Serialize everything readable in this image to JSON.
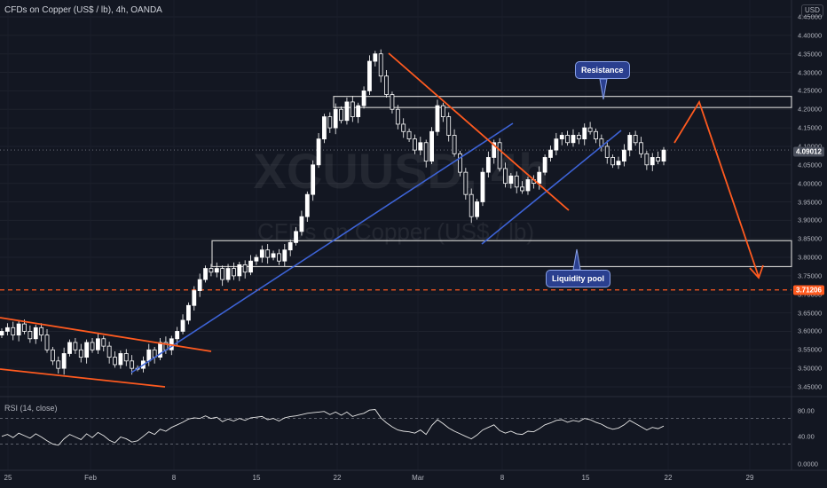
{
  "header": {
    "title": "CFDs on Copper (US$ / lb), 4h, OANDA",
    "currency": "USD"
  },
  "watermark": {
    "symbol": "XCUUSD, 4h",
    "description": "CFDs on Copper (US$ / lb)"
  },
  "rsi": {
    "label": "RSI (14, close)",
    "ticks": [
      "80.00",
      "40.00",
      "0.0000"
    ]
  },
  "annotations": {
    "resistance": "Resistance",
    "liquidity": "Liquidity pool"
  },
  "price_tags": {
    "current": "4.09012",
    "level": "3.71206"
  },
  "colors": {
    "background": "#131722",
    "bull": "#ffffff",
    "bear": "#ffffff",
    "trendline_blue": "#3d63d6",
    "trendline_orange": "#ff5a1f",
    "zone_border": "#c8c8c8",
    "callout_bg": "#2a3f8f",
    "level_line": "#ff5a1f"
  },
  "chart_data": {
    "type": "candlestick",
    "title": "CFDs on Copper (US$ / lb), 4h, OANDA",
    "y_axis": {
      "ticks": [
        "4.45000",
        "4.40000",
        "4.35000",
        "4.30000",
        "4.25000",
        "4.20000",
        "4.15000",
        "4.10000",
        "4.05000",
        "4.00000",
        "3.95000",
        "3.90000",
        "3.85000",
        "3.80000",
        "3.75000",
        "3.70000",
        "3.65000",
        "3.60000",
        "3.55000",
        "3.50000",
        "3.45000"
      ],
      "range": [
        3.43,
        4.47
      ]
    },
    "x_axis": {
      "ticks": [
        "25",
        "Feb",
        "8",
        "15",
        "22",
        "Mar",
        "8",
        "15",
        "22",
        "29"
      ]
    },
    "close_path": [
      3.6,
      3.61,
      3.59,
      3.62,
      3.6,
      3.58,
      3.61,
      3.59,
      3.55,
      3.52,
      3.5,
      3.54,
      3.57,
      3.55,
      3.53,
      3.57,
      3.55,
      3.58,
      3.56,
      3.53,
      3.51,
      3.54,
      3.52,
      3.5,
      3.5,
      3.52,
      3.55,
      3.53,
      3.57,
      3.55,
      3.58,
      3.6,
      3.63,
      3.67,
      3.71,
      3.74,
      3.77,
      3.76,
      3.77,
      3.74,
      3.77,
      3.75,
      3.78,
      3.76,
      3.79,
      3.8,
      3.82,
      3.8,
      3.81,
      3.79,
      3.82,
      3.84,
      3.87,
      3.91,
      3.97,
      4.05,
      4.12,
      4.18,
      4.15,
      4.2,
      4.17,
      4.22,
      4.18,
      4.21,
      4.25,
      4.33,
      4.35,
      4.29,
      4.24,
      4.2,
      4.16,
      4.14,
      4.12,
      4.09,
      4.11,
      4.06,
      4.14,
      4.21,
      4.18,
      4.13,
      4.08,
      4.03,
      3.97,
      3.91,
      3.95,
      4.03,
      4.07,
      4.11,
      4.04,
      4,
      4.02,
      3.99,
      3.98,
      4.01,
      4,
      4.03,
      4.07,
      4.09,
      4.12,
      4.13,
      4.11,
      4.13,
      4.12,
      4.15,
      4.14,
      4.12,
      4.1,
      4.07,
      4.05,
      4.06,
      4.09,
      4.13,
      4.11,
      4.08,
      4.05,
      4.07,
      4.06,
      4.09
    ],
    "levels": [
      {
        "name": "current",
        "value": 4.09012
      },
      {
        "name": "dashed-level",
        "value": 3.71206
      }
    ],
    "zones": [
      {
        "name": "resistance",
        "from": 4.205,
        "to": 4.235
      },
      {
        "name": "liquidity-pool",
        "from": 3.775,
        "to": 3.845
      }
    ],
    "rsi": {
      "range": [
        0,
        100
      ],
      "bands": [
        70,
        30
      ],
      "values": [
        42,
        45,
        40,
        47,
        43,
        39,
        46,
        41,
        35,
        30,
        28,
        38,
        45,
        41,
        37,
        46,
        40,
        48,
        43,
        36,
        32,
        41,
        38,
        33,
        35,
        42,
        49,
        45,
        53,
        50,
        56,
        60,
        64,
        69,
        71,
        70,
        74,
        70,
        72,
        65,
        69,
        66,
        70,
        67,
        71,
        72,
        73,
        68,
        70,
        66,
        71,
        73,
        74,
        76,
        78,
        79,
        80,
        81,
        76,
        80,
        75,
        80,
        73,
        76,
        78,
        83,
        84,
        71,
        63,
        57,
        52,
        50,
        49,
        47,
        52,
        45,
        59,
        68,
        62,
        55,
        50,
        46,
        42,
        38,
        44,
        52,
        56,
        60,
        51,
        47,
        50,
        46,
        45,
        50,
        49,
        54,
        60,
        63,
        67,
        68,
        64,
        67,
        65,
        70,
        68,
        64,
        61,
        56,
        53,
        55,
        60,
        67,
        62,
        57,
        52,
        56,
        54,
        58
      ]
    }
  }
}
